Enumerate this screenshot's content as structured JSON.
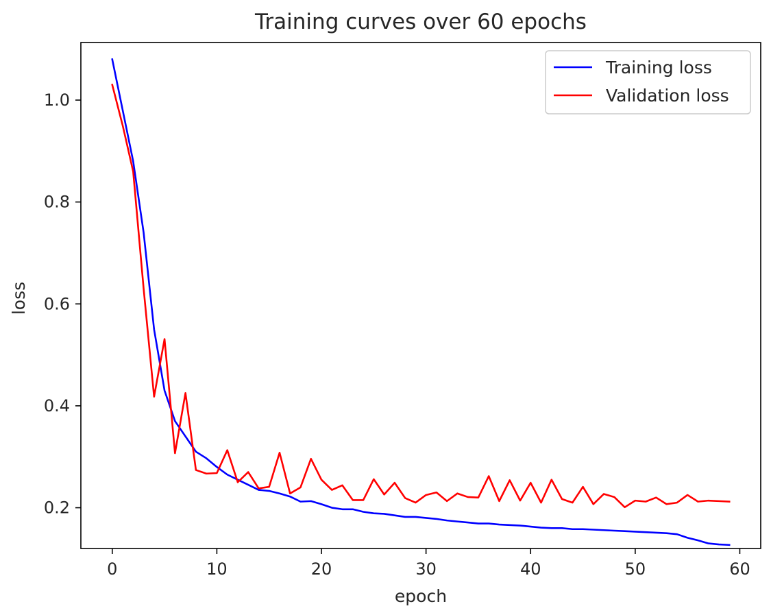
{
  "chart_data": {
    "type": "line",
    "title": "Training curves over 60 epochs",
    "xlabel": "epoch",
    "ylabel": "loss",
    "xlim": [
      -3,
      62
    ],
    "ylim": [
      0.12,
      1.113
    ],
    "xticks": [
      0,
      10,
      20,
      30,
      40,
      50,
      60
    ],
    "xtick_labels": [
      "0",
      "10",
      "20",
      "30",
      "40",
      "50",
      "60"
    ],
    "yticks": [
      0.2,
      0.4,
      0.6,
      0.8,
      1.0
    ],
    "ytick_labels": [
      "0.2",
      "0.4",
      "0.6",
      "0.8",
      "1.0"
    ],
    "grid": false,
    "legend_position": "top-right",
    "x": [
      0,
      1,
      2,
      3,
      4,
      5,
      6,
      7,
      8,
      9,
      10,
      11,
      12,
      13,
      14,
      15,
      16,
      17,
      18,
      19,
      20,
      21,
      22,
      23,
      24,
      25,
      26,
      27,
      28,
      29,
      30,
      31,
      32,
      33,
      34,
      35,
      36,
      37,
      38,
      39,
      40,
      41,
      42,
      43,
      44,
      45,
      46,
      47,
      48,
      49,
      50,
      51,
      52,
      53,
      54,
      55,
      56,
      57,
      58,
      59
    ],
    "series": [
      {
        "name": "Training loss",
        "color": "#0000ff",
        "values": [
          1.08,
          0.98,
          0.88,
          0.74,
          0.55,
          0.43,
          0.37,
          0.34,
          0.31,
          0.297,
          0.28,
          0.265,
          0.255,
          0.245,
          0.235,
          0.233,
          0.228,
          0.222,
          0.212,
          0.213,
          0.207,
          0.2,
          0.197,
          0.197,
          0.192,
          0.189,
          0.188,
          0.185,
          0.182,
          0.182,
          0.18,
          0.178,
          0.175,
          0.173,
          0.171,
          0.169,
          0.169,
          0.167,
          0.166,
          0.165,
          0.163,
          0.161,
          0.16,
          0.16,
          0.158,
          0.158,
          0.157,
          0.156,
          0.155,
          0.154,
          0.153,
          0.152,
          0.151,
          0.15,
          0.148,
          0.141,
          0.136,
          0.13,
          0.128,
          0.127
        ]
      },
      {
        "name": "Validation loss",
        "color": "#ff0000",
        "values": [
          1.03,
          0.95,
          0.86,
          0.63,
          0.418,
          0.531,
          0.307,
          0.425,
          0.274,
          0.267,
          0.268,
          0.313,
          0.25,
          0.27,
          0.238,
          0.241,
          0.308,
          0.228,
          0.24,
          0.296,
          0.255,
          0.235,
          0.244,
          0.215,
          0.215,
          0.256,
          0.226,
          0.249,
          0.219,
          0.21,
          0.225,
          0.23,
          0.213,
          0.228,
          0.221,
          0.22,
          0.262,
          0.213,
          0.254,
          0.214,
          0.249,
          0.21,
          0.255,
          0.217,
          0.21,
          0.241,
          0.207,
          0.227,
          0.221,
          0.201,
          0.214,
          0.212,
          0.22,
          0.207,
          0.21,
          0.225,
          0.212,
          0.214,
          0.213,
          0.212
        ]
      }
    ]
  }
}
